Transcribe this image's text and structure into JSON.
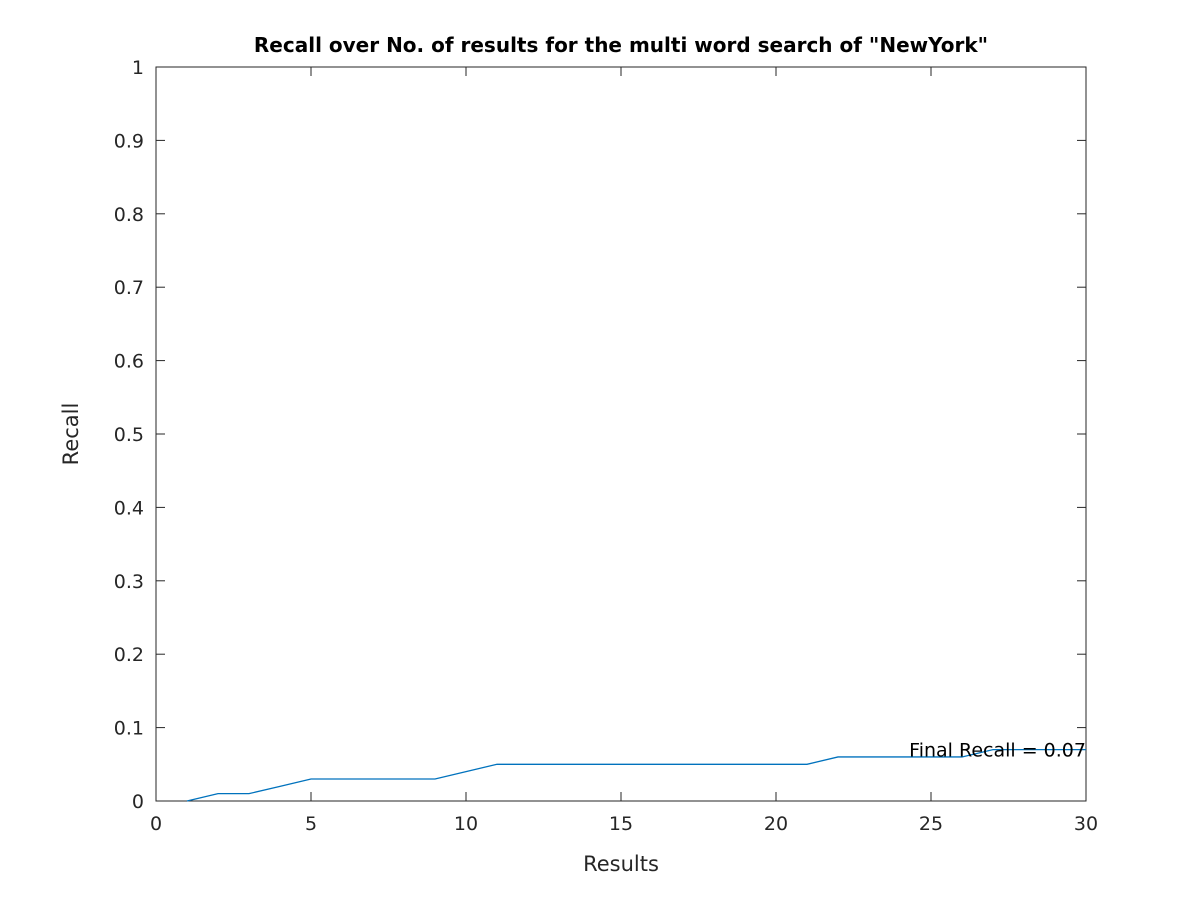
{
  "chart_data": {
    "type": "line",
    "title": "Recall over No. of results for the multi word search of \"NewYork\"",
    "xlabel": "Results",
    "ylabel": "Recall",
    "xlim": [
      0,
      30
    ],
    "ylim": [
      0,
      1
    ],
    "xticks": [
      "0",
      "5",
      "10",
      "15",
      "20",
      "25",
      "30"
    ],
    "yticks": [
      "0",
      "0.1",
      "0.2",
      "0.3",
      "0.4",
      "0.5",
      "0.6",
      "0.7",
      "0.8",
      "0.9",
      "1"
    ],
    "grid": false,
    "series": [
      {
        "color": "#0072bd",
        "x": [
          1,
          2,
          3,
          4,
          5,
          6,
          7,
          8,
          9,
          10,
          11,
          12,
          13,
          14,
          15,
          16,
          17,
          18,
          19,
          20,
          21,
          22,
          23,
          24,
          25,
          26,
          27,
          28,
          29,
          30
        ],
        "y": [
          0,
          0.01,
          0.01,
          0.02,
          0.03,
          0.03,
          0.03,
          0.03,
          0.03,
          0.04,
          0.05,
          0.05,
          0.05,
          0.05,
          0.05,
          0.05,
          0.05,
          0.05,
          0.05,
          0.05,
          0.05,
          0.06,
          0.06,
          0.06,
          0.06,
          0.06,
          0.07,
          0.07,
          0.07,
          0.07
        ]
      }
    ],
    "annotations": [
      {
        "text": "Final Recall = 0.07",
        "x": 30,
        "y": 0.07
      }
    ]
  }
}
